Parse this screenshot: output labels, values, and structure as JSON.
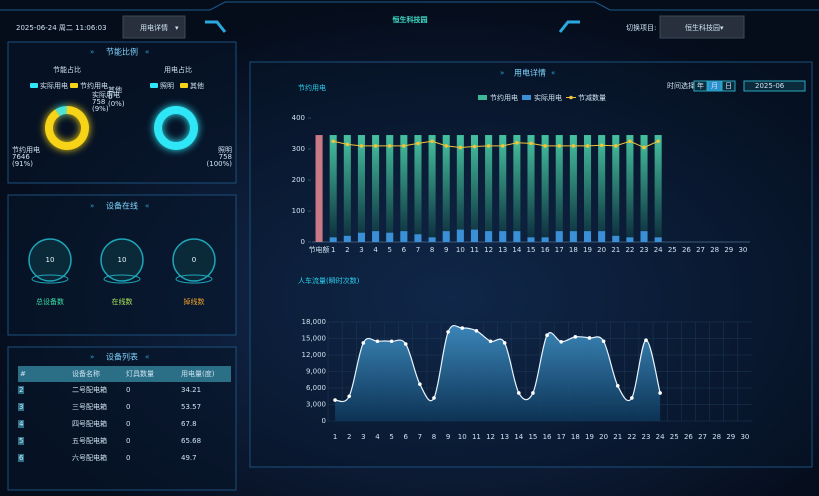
{
  "header": {
    "datetime": "2025-06-24 周二 11:06:03",
    "button": "用电详情",
    "title": "恒生科技园",
    "switch_label": "切换项目:",
    "project": "恒生科技园"
  },
  "energy_panel": {
    "title": "节能比例"
  },
  "device_online": {
    "title": "设备在线",
    "stats": [
      {
        "value": 10,
        "label": "总设备数"
      },
      {
        "value": 10,
        "label": "在线数"
      },
      {
        "value": 0,
        "label": "掉线数"
      }
    ]
  },
  "device_list": {
    "title": "设备列表",
    "columns": [
      "#",
      "设备名称",
      "灯具数量",
      "用电量(度)"
    ],
    "rows": [
      [
        2,
        "二号配电箱",
        0,
        34.21
      ],
      [
        3,
        "三号配电箱",
        0,
        53.57
      ],
      [
        4,
        "四号配电箱",
        0,
        67.8
      ],
      [
        5,
        "五号配电箱",
        0,
        65.68
      ],
      [
        6,
        "六号配电箱",
        0,
        49.7
      ]
    ]
  },
  "usage_panel": {
    "title": "用电详情",
    "time_label": "时间选择:",
    "modes": [
      "年",
      "月",
      "日"
    ],
    "active_mode": 1,
    "date": "2025-06"
  },
  "chart_data": [
    {
      "type": "donut",
      "title": "节能占比",
      "categories": [
        "实际用电",
        "节约用电"
      ],
      "values": [
        758,
        7646
      ],
      "percent_labels": [
        "(9%)",
        "(91%)"
      ],
      "colors": [
        "#2ee6f6",
        "#f7d417"
      ]
    },
    {
      "type": "donut",
      "title": "用电占比",
      "categories": [
        "照明",
        "其他"
      ],
      "values": [
        758,
        0
      ],
      "percent_labels": [
        "(100%)",
        "(0%)"
      ],
      "colors": [
        "#2ee6f6",
        "#f7d417"
      ]
    },
    {
      "type": "combo",
      "title": "节约用电",
      "categories": [
        "节电额",
        "1",
        "2",
        "3",
        "4",
        "5",
        "6",
        "7",
        "8",
        "9",
        "10",
        "11",
        "12",
        "13",
        "14",
        "15",
        "16",
        "17",
        "18",
        "19",
        "20",
        "21",
        "22",
        "23",
        "24",
        "25",
        "26",
        "27",
        "28",
        "29",
        "30"
      ],
      "ylim": [
        0,
        400
      ],
      "yticks": [
        0,
        100,
        200,
        300,
        400
      ],
      "first_bar_color": "#c97a86",
      "series": [
        {
          "name": "节约用电",
          "type": "bar",
          "color": "#3fb89a",
          "values": [
            345,
            345,
            345,
            345,
            345,
            345,
            345,
            345,
            345,
            345,
            345,
            345,
            345,
            345,
            345,
            345,
            345,
            345,
            345,
            345,
            345,
            345,
            345,
            345,
            345,
            null,
            null,
            null,
            null,
            null,
            null
          ]
        },
        {
          "name": "实际用电",
          "type": "bar",
          "color": "#3b8fd6",
          "values": [
            null,
            15,
            20,
            30,
            35,
            30,
            35,
            25,
            15,
            35,
            40,
            40,
            35,
            35,
            35,
            15,
            15,
            35,
            35,
            35,
            35,
            20,
            15,
            35,
            15,
            null,
            null,
            null,
            null,
            null,
            null
          ]
        },
        {
          "name": "节减数量",
          "type": "line",
          "color": "#f0c43a",
          "values": [
            null,
            325,
            315,
            310,
            310,
            310,
            310,
            318,
            325,
            310,
            305,
            308,
            310,
            310,
            320,
            318,
            310,
            310,
            310,
            310,
            312,
            310,
            325,
            305,
            325,
            null,
            null,
            null,
            null,
            null,
            null
          ]
        }
      ]
    },
    {
      "type": "area",
      "title": "人车流量(瞬时次数)",
      "color": "#3a8cc4",
      "categories": [
        "1",
        "2",
        "3",
        "4",
        "5",
        "6",
        "7",
        "8",
        "9",
        "10",
        "11",
        "12",
        "13",
        "14",
        "15",
        "16",
        "17",
        "18",
        "19",
        "20",
        "21",
        "22",
        "23",
        "24",
        "25",
        "26",
        "27",
        "28",
        "29",
        "30"
      ],
      "values": [
        3800,
        4500,
        14200,
        14500,
        14500,
        14000,
        6700,
        4200,
        16200,
        16900,
        16400,
        14500,
        14200,
        5100,
        5100,
        15600,
        14400,
        15300,
        15100,
        14500,
        6400,
        4200,
        14700,
        5100,
        null,
        null,
        null,
        null,
        null,
        null
      ],
      "ylim": [
        0,
        18000
      ],
      "yticks": [
        0,
        {
          "value": 3000,
          "label": "3,000"
        },
        {
          "value": 6000,
          "label": "6,000"
        },
        {
          "value": 9000,
          "label": "9,000"
        },
        {
          "value": 12000,
          "label": "12,000"
        },
        {
          "value": 15000,
          "label": "15,000"
        },
        {
          "value": 18000,
          "label": "18,000"
        }
      ],
      "grid": true
    }
  ]
}
